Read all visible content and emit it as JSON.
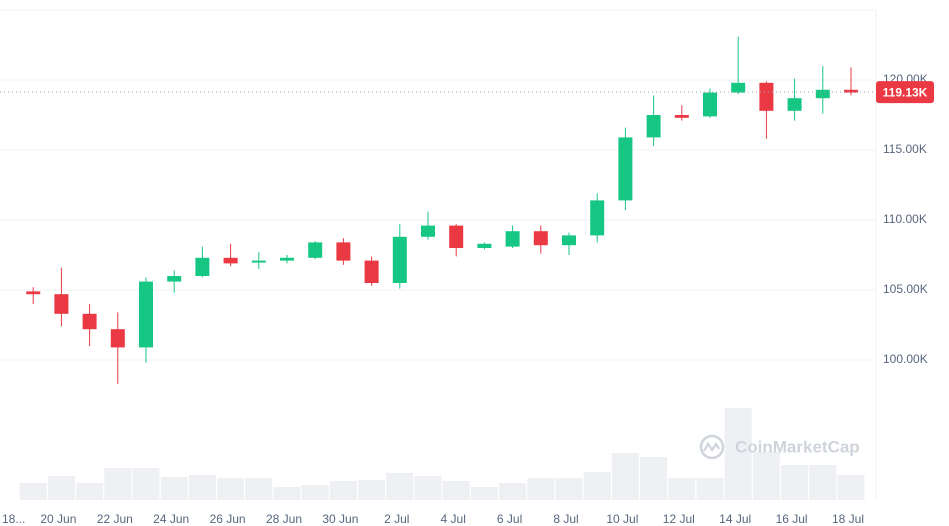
{
  "chart_data": {
    "type": "candlestick",
    "categories": [
      "18...",
      null,
      "20 Jun",
      null,
      "22 Jun",
      null,
      "24 Jun",
      null,
      "26 Jun",
      null,
      "28 Jun",
      null,
      "30 Jun",
      null,
      "2 Jul",
      null,
      "4 Jul",
      null,
      "6 Jul",
      null,
      "8 Jul",
      null,
      "10 Jul",
      null,
      "12 Jul",
      null,
      "14 Jul",
      null,
      "16 Jul",
      null,
      "18 Jul"
    ],
    "open": [
      null,
      104900,
      104700,
      103300,
      102200,
      100900,
      105600,
      106000,
      107300,
      107000,
      107100,
      107300,
      108400,
      107100,
      105500,
      108800,
      109600,
      108000,
      108100,
      109200,
      108200,
      108900,
      111400,
      115900,
      117500,
      117400,
      119100,
      119800,
      117800,
      118700,
      119300
    ],
    "high": [
      null,
      105200,
      106600,
      104000,
      103400,
      105900,
      106400,
      108100,
      108300,
      107700,
      107500,
      108500,
      108700,
      107400,
      109700,
      110600,
      109700,
      108400,
      109600,
      109600,
      109100,
      111900,
      116600,
      118900,
      118200,
      119400,
      123100,
      119900,
      120100,
      121000,
      120900
    ],
    "low": [
      null,
      104000,
      102400,
      101000,
      98300,
      99800,
      104800,
      105900,
      106700,
      106500,
      106900,
      107200,
      106800,
      105300,
      105100,
      108600,
      107400,
      107900,
      108000,
      107600,
      107500,
      108400,
      110700,
      115300,
      117100,
      117300,
      119000,
      115800,
      117100,
      117600,
      118900
    ],
    "close": [
      null,
      104700,
      103300,
      102200,
      100900,
      105600,
      106000,
      107300,
      106900,
      107100,
      107300,
      108400,
      107100,
      105500,
      108800,
      109600,
      108000,
      108300,
      109200,
      108200,
      108900,
      111400,
      115900,
      117500,
      117300,
      119100,
      119800,
      117800,
      118700,
      119300,
      119100
    ],
    "volume": [
      null,
      17,
      24,
      17,
      32,
      32,
      23,
      25,
      22,
      22,
      13,
      15,
      19,
      20,
      27,
      24,
      19,
      13,
      17,
      22,
      22,
      28,
      47,
      43,
      22,
      22,
      92,
      48,
      35,
      35,
      25
    ],
    "volume_lim": [
      0,
      100
    ],
    "up_color": "#16c784",
    "down_color": "#ea3943",
    "volume_color": "#eef0f3",
    "ylim": [
      90000,
      125000
    ],
    "yticks": [
      {
        "value": 100000,
        "label": "100.00K"
      },
      {
        "value": 105000,
        "label": "105.00K"
      },
      {
        "value": 110000,
        "label": "110.00K"
      },
      {
        "value": 115000,
        "label": "115.00K"
      },
      {
        "value": 120000,
        "label": "120.00K"
      }
    ],
    "grid": true,
    "last_price": 119130,
    "last_price_label": "119.13K",
    "watermark": "CoinMarketCap"
  }
}
